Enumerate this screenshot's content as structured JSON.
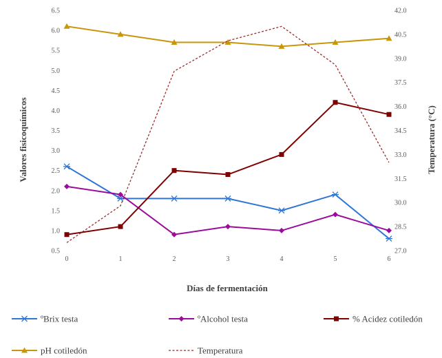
{
  "chart_data": {
    "type": "line",
    "x": [
      0,
      1,
      2,
      3,
      4,
      5,
      6
    ],
    "xlabel": "Días de fermentación",
    "ylabel": "Valores fisicoquímicos",
    "y2label": "Temperatura (°C)",
    "ylim": [
      0.5,
      6.5
    ],
    "y2lim": [
      27.0,
      42.0
    ],
    "y_ticks": [
      "0.5",
      "1.0",
      "1.5",
      "2.0",
      "2.5",
      "3.0",
      "3.5",
      "4.0",
      "4.5",
      "5.0",
      "5.5",
      "6.0",
      "6.5"
    ],
    "y2_ticks": [
      "27.0",
      "28.5",
      "30.0",
      "31.5",
      "33.0",
      "34.5",
      "36.0",
      "37.5",
      "39.0",
      "40.5",
      "42.0"
    ],
    "x_ticks": [
      "0",
      "1",
      "2",
      "3",
      "4",
      "5",
      "6"
    ],
    "grid": false,
    "legend_position": "bottom",
    "series": [
      {
        "name": "ºBrix testa",
        "axis": "left",
        "color": "#2e75d6",
        "marker": "star",
        "dashed": false,
        "values": [
          2.6,
          1.8,
          1.8,
          1.8,
          1.5,
          1.9,
          0.8
        ]
      },
      {
        "name": "ºAlcohol testa",
        "axis": "left",
        "color": "#9b0b9b",
        "marker": "diamond",
        "dashed": false,
        "values": [
          2.1,
          1.9,
          0.9,
          1.1,
          1.0,
          1.4,
          1.0
        ]
      },
      {
        "name": "% Acidez cotiledón",
        "axis": "left",
        "color": "#7f0000",
        "marker": "square",
        "dashed": false,
        "values": [
          0.9,
          1.1,
          2.5,
          2.4,
          2.9,
          4.2,
          3.9
        ]
      },
      {
        "name": "pH cotiledón",
        "axis": "left",
        "color": "#c8960a",
        "marker": "triangle",
        "dashed": false,
        "values": [
          6.1,
          5.9,
          5.7,
          5.7,
          5.6,
          5.7,
          5.8
        ]
      },
      {
        "name": "Temperatura",
        "axis": "right",
        "color": "#9a2a2a",
        "marker": "none",
        "dashed": true,
        "values": [
          27.5,
          29.8,
          38.2,
          40.1,
          41.0,
          38.6,
          32.5
        ]
      }
    ]
  }
}
